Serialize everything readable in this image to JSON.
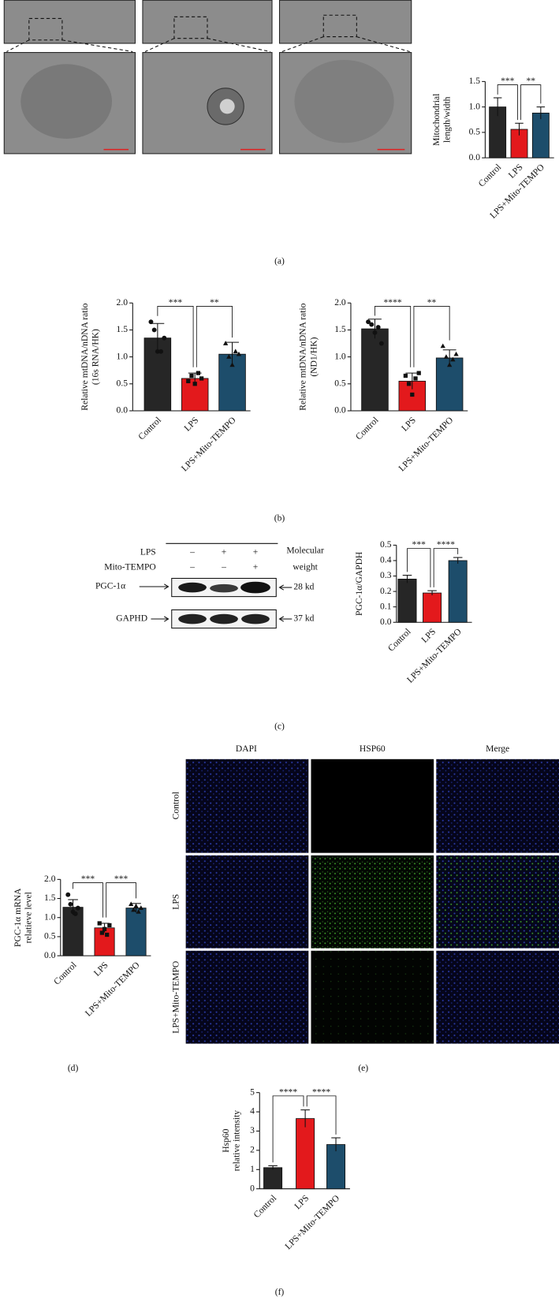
{
  "panel_labels": [
    "(a)",
    "(b)",
    "(c)",
    "(d)",
    "(e)",
    "(f)"
  ],
  "blot": {
    "row_labels": [
      "LPS",
      "Mito-TEMPO"
    ],
    "signs": [
      [
        "–",
        "+",
        "+"
      ],
      [
        "–",
        "–",
        "+"
      ]
    ],
    "molecular_weight": [
      "Molecular",
      "weight"
    ],
    "bands": [
      {
        "name": "PGC-1α",
        "weight": "28 kd"
      },
      {
        "name": "GAPHD",
        "weight": "37 kd"
      }
    ]
  },
  "immunofluorescence": {
    "columns": [
      "DAPI",
      "HSP60",
      "Merge"
    ],
    "rows": [
      "Control",
      "LPS",
      "LPS+Mito-TEMPO"
    ]
  },
  "chart_data": [
    {
      "type": "bar",
      "ylabel": [
        "Mitochondrial",
        "length/width"
      ],
      "categories": [
        "Control",
        "LPS",
        "LPS+Mito-TEMPO"
      ],
      "colors": [
        "#262626",
        "#e3191c",
        "#1d4d6b"
      ],
      "values": [
        1.0,
        0.56,
        0.88
      ],
      "errors": [
        0.18,
        0.12,
        0.12
      ],
      "ylim": [
        0,
        1.5
      ],
      "yticks": [
        {
          "value": 0,
          "label": "0.0"
        },
        0.5,
        {
          "value": 1,
          "label": "1.0"
        },
        1.5
      ],
      "significance": [
        "***",
        "**"
      ]
    },
    {
      "type": "bar",
      "ylabel": [
        "Relative mtDNA/nDNA ratio",
        "(16s RNA/HK)"
      ],
      "categories": [
        "Control",
        "LPS",
        "LPS+Mito-TEMPO"
      ],
      "colors": [
        "#262626",
        "#e3191c",
        "#1d4d6b"
      ],
      "values": [
        1.35,
        0.6,
        1.05
      ],
      "errors": [
        0.27,
        0.1,
        0.22
      ],
      "points": [
        [
          1.65,
          1.5,
          1.1,
          1.1,
          1.35
        ],
        [
          0.55,
          0.65,
          0.5,
          0.7,
          0.6
        ],
        [
          1.25,
          1.0,
          0.85,
          1.1,
          1.05
        ]
      ],
      "ylim": [
        0,
        2
      ],
      "yticks": [
        {
          "value": 0,
          "label": "0.0"
        },
        0.5,
        {
          "value": 1,
          "label": "1.0"
        },
        1.5,
        {
          "value": 2,
          "label": "2.0"
        }
      ],
      "significance": [
        "***",
        "**"
      ]
    },
    {
      "type": "bar",
      "ylabel": [
        "Relative mtDNA/nDNA ratio",
        "(ND1/HK)"
      ],
      "categories": [
        "Control",
        "LPS",
        "LPS+Mito-TEMPO"
      ],
      "colors": [
        "#262626",
        "#e3191c",
        "#1d4d6b"
      ],
      "values": [
        1.52,
        0.55,
        0.98
      ],
      "errors": [
        0.18,
        0.15,
        0.15
      ],
      "points": [
        [
          1.65,
          1.6,
          1.45,
          1.55,
          1.25
        ],
        [
          0.65,
          0.5,
          0.3,
          0.6,
          0.7
        ],
        [
          1.2,
          1.0,
          0.85,
          0.95,
          1.05
        ]
      ],
      "ylim": [
        0,
        2
      ],
      "yticks": [
        {
          "value": 0,
          "label": "0.0"
        },
        0.5,
        {
          "value": 1,
          "label": "1.0"
        },
        1.5,
        {
          "value": 2,
          "label": "2.0"
        }
      ],
      "significance": [
        "****",
        "**"
      ]
    },
    {
      "type": "bar",
      "ylabel": [
        "PGC-1α/GAPDH"
      ],
      "categories": [
        "Control",
        "LPS",
        "LPS+Mito-TEMPO"
      ],
      "colors": [
        "#262626",
        "#e3191c",
        "#1d4d6b"
      ],
      "values": [
        0.28,
        0.19,
        0.4
      ],
      "errors": [
        0.025,
        0.015,
        0.02
      ],
      "ylim": [
        0,
        0.5
      ],
      "yticks": [
        {
          "value": 0,
          "label": "0.0"
        },
        0.1,
        0.2,
        0.3,
        0.4,
        0.5
      ],
      "significance": [
        "***",
        "****"
      ]
    },
    {
      "type": "bar",
      "ylabel": [
        "PGC-1α mRNA",
        "relatieve level"
      ],
      "categories": [
        "Control",
        "LPS",
        "LPS+Mito-TEMPO"
      ],
      "colors": [
        "#262626",
        "#e3191c",
        "#1d4d6b"
      ],
      "values": [
        1.27,
        0.73,
        1.25
      ],
      "errors": [
        0.2,
        0.12,
        0.12
      ],
      "points": [
        [
          1.6,
          1.35,
          1.15,
          1.1,
          1.25
        ],
        [
          0.85,
          0.6,
          0.7,
          0.55,
          0.8
        ],
        [
          1.35,
          1.2,
          1.3,
          1.15,
          1.25
        ]
      ],
      "ylim": [
        0,
        2
      ],
      "yticks": [
        {
          "value": 0,
          "label": "0.0"
        },
        0.5,
        {
          "value": 1,
          "label": "1.0"
        },
        1.5,
        {
          "value": 2,
          "label": "2.0"
        }
      ],
      "significance": [
        "***",
        "***"
      ]
    },
    {
      "type": "bar",
      "ylabel": [
        "Hsp60",
        "relative intensity"
      ],
      "categories": [
        "Control",
        "LPS",
        "LPS+Mito-TEMPO"
      ],
      "colors": [
        "#262626",
        "#e3191c",
        "#1d4d6b"
      ],
      "values": [
        1.1,
        3.65,
        2.3
      ],
      "errors": [
        0.1,
        0.45,
        0.35
      ],
      "ylim": [
        0,
        5
      ],
      "yticks": [
        0,
        1,
        2,
        3,
        4,
        5
      ],
      "significance": [
        "****",
        "****"
      ]
    }
  ]
}
